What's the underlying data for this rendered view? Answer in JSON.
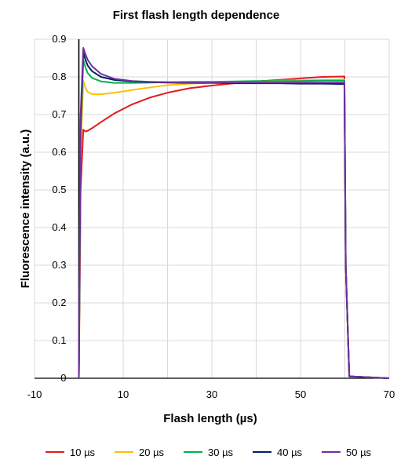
{
  "chart_data": {
    "type": "line",
    "title": "First flash length dependence",
    "xlabel": "Flash length (µs)",
    "ylabel": "Fluorescence intensity (a.u.)",
    "xlim": [
      -10,
      70
    ],
    "ylim": [
      0,
      0.9
    ],
    "x_ticks": [
      -10,
      10,
      30,
      50,
      70
    ],
    "y_ticks": [
      0,
      0.1,
      0.2,
      0.3,
      0.4,
      0.5,
      0.6,
      0.7,
      0.8,
      0.9
    ],
    "grid": true,
    "legend_position": "bottom",
    "series": [
      {
        "name": "10 µs",
        "color": "#e41a1c",
        "x": [
          0,
          0.4,
          1,
          1.5,
          2,
          3,
          5,
          8,
          12,
          16,
          20,
          25,
          30,
          35,
          40,
          45,
          50,
          55,
          59.9,
          60.2,
          61,
          70
        ],
        "y": [
          0,
          0.5,
          0.66,
          0.655,
          0.657,
          0.664,
          0.68,
          0.703,
          0.727,
          0.745,
          0.758,
          0.77,
          0.777,
          0.783,
          0.788,
          0.792,
          0.796,
          0.8,
          0.801,
          0.3,
          0.005,
          0.0
        ]
      },
      {
        "name": "20 µs",
        "color": "#ffc000",
        "x": [
          0,
          0.4,
          1,
          1.5,
          2,
          3,
          5,
          8,
          12,
          16,
          20,
          25,
          30,
          35,
          40,
          45,
          50,
          55,
          59.9,
          60.2,
          61,
          70
        ],
        "y": [
          0,
          0.6,
          0.79,
          0.77,
          0.76,
          0.754,
          0.754,
          0.758,
          0.765,
          0.772,
          0.778,
          0.782,
          0.784,
          0.786,
          0.788,
          0.79,
          0.791,
          0.792,
          0.793,
          0.3,
          0.005,
          0.0
        ]
      },
      {
        "name": "30 µs",
        "color": "#00b050",
        "x": [
          0,
          0.4,
          1,
          1.5,
          2,
          3,
          5,
          8,
          12,
          16,
          20,
          25,
          30,
          35,
          40,
          45,
          50,
          55,
          59.9,
          60.2,
          61,
          70
        ],
        "y": [
          0,
          0.65,
          0.845,
          0.825,
          0.81,
          0.797,
          0.788,
          0.784,
          0.784,
          0.785,
          0.786,
          0.787,
          0.787,
          0.788,
          0.789,
          0.789,
          0.789,
          0.79,
          0.79,
          0.3,
          0.005,
          0.0
        ]
      },
      {
        "name": "40 µs",
        "color": "#002060",
        "x": [
          0,
          0.4,
          1,
          1.5,
          2,
          3,
          5,
          8,
          12,
          16,
          20,
          25,
          30,
          35,
          40,
          45,
          50,
          55,
          59.9,
          60.2,
          61,
          70
        ],
        "y": [
          0,
          0.68,
          0.865,
          0.845,
          0.83,
          0.815,
          0.8,
          0.792,
          0.788,
          0.786,
          0.785,
          0.784,
          0.784,
          0.783,
          0.783,
          0.783,
          0.782,
          0.782,
          0.781,
          0.3,
          0.005,
          0.0
        ]
      },
      {
        "name": "50 µs",
        "color": "#7030a0",
        "x": [
          0,
          0.4,
          1,
          1.5,
          2,
          3,
          5,
          8,
          12,
          16,
          20,
          25,
          30,
          35,
          40,
          45,
          50,
          55,
          59.9,
          60.2,
          61,
          70
        ],
        "y": [
          0,
          0.7,
          0.877,
          0.86,
          0.845,
          0.828,
          0.808,
          0.795,
          0.789,
          0.787,
          0.786,
          0.785,
          0.785,
          0.785,
          0.785,
          0.785,
          0.785,
          0.785,
          0.785,
          0.3,
          0.005,
          0.0
        ]
      }
    ]
  }
}
